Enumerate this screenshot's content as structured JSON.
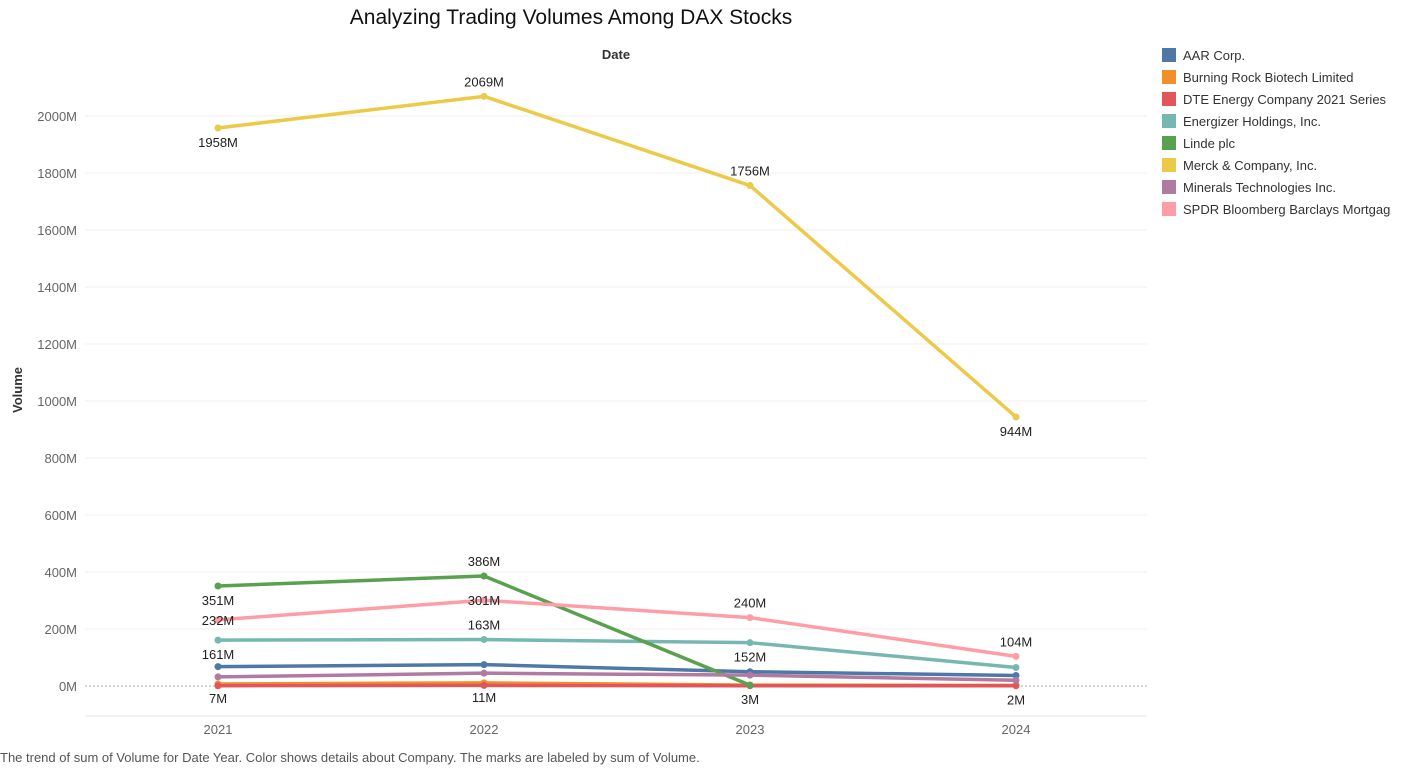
{
  "chart_data": {
    "type": "line",
    "title": "Analyzing Trading Volumes Among DAX Stocks",
    "xlabel": "Date",
    "ylabel": "Volume",
    "x": [
      "2021",
      "2022",
      "2023",
      "2024"
    ],
    "ylim": [
      -100,
      2200
    ],
    "y_ticks": [
      0,
      200,
      400,
      600,
      800,
      1000,
      1200,
      1400,
      1600,
      1800,
      2000
    ],
    "y_tick_labels": [
      "0M",
      "200M",
      "400M",
      "600M",
      "800M",
      "1000M",
      "1200M",
      "1400M",
      "1600M",
      "1800M",
      "2000M"
    ],
    "grid": true,
    "legend_position": "right",
    "series": [
      {
        "name": "AAR Corp.",
        "color": "#4e79a7",
        "values": [
          68,
          75,
          50,
          37
        ]
      },
      {
        "name": "Burning Rock Biotech Limited",
        "color": "#f28e2b",
        "values": [
          7,
          11,
          3,
          2
        ]
      },
      {
        "name": "DTE Energy Company 2021 Series",
        "color": "#e15759",
        "values": [
          1,
          2,
          1,
          1
        ]
      },
      {
        "name": "Energizer Holdings, Inc.",
        "color": "#76b7b2",
        "values": [
          161,
          163,
          152,
          65
        ]
      },
      {
        "name": "Linde plc",
        "color": "#59a14f",
        "values": [
          351,
          386,
          3,
          null
        ]
      },
      {
        "name": "Merck & Company, Inc.",
        "color": "#edc948",
        "values": [
          1958,
          2069,
          1756,
          944
        ]
      },
      {
        "name": "Minerals Technologies Inc.",
        "color": "#b07aa1",
        "values": [
          32,
          45,
          38,
          20
        ]
      },
      {
        "name": "SPDR Bloomberg Barclays Mortgag",
        "color": "#ff9da7",
        "values": [
          232,
          301,
          240,
          104
        ]
      }
    ],
    "annotations": [
      {
        "text": "1958M",
        "x": "2021",
        "y": 1958,
        "pos": "below"
      },
      {
        "text": "2069M",
        "x": "2022",
        "y": 2069,
        "pos": "above"
      },
      {
        "text": "1756M",
        "x": "2023",
        "y": 1756,
        "pos": "above"
      },
      {
        "text": "944M",
        "x": "2024",
        "y": 944,
        "pos": "below"
      },
      {
        "text": "351M",
        "x": "2021",
        "y": 351,
        "pos": "below"
      },
      {
        "text": "386M",
        "x": "2022",
        "y": 386,
        "pos": "above"
      },
      {
        "text": "232M",
        "x": "2021",
        "y": 232,
        "pos": "at"
      },
      {
        "text": "301M",
        "x": "2022",
        "y": 301,
        "pos": "at"
      },
      {
        "text": "240M",
        "x": "2023",
        "y": 240,
        "pos": "above"
      },
      {
        "text": "104M",
        "x": "2024",
        "y": 104,
        "pos": "above"
      },
      {
        "text": "161M",
        "x": "2021",
        "y": 161,
        "pos": "below"
      },
      {
        "text": "163M",
        "x": "2022",
        "y": 163,
        "pos": "above"
      },
      {
        "text": "152M",
        "x": "2023",
        "y": 152,
        "pos": "below"
      },
      {
        "text": "7M",
        "x": "2021",
        "y": 7,
        "pos": "below"
      },
      {
        "text": "11M",
        "x": "2022",
        "y": 11,
        "pos": "below"
      },
      {
        "text": "3M",
        "x": "2023",
        "y": 3,
        "pos": "below"
      },
      {
        "text": "2M",
        "x": "2024",
        "y": 2,
        "pos": "below"
      }
    ]
  },
  "caption": "The trend of sum of Volume for Date Year.  Color shows details about Company.  The marks are labeled by sum of Volume."
}
